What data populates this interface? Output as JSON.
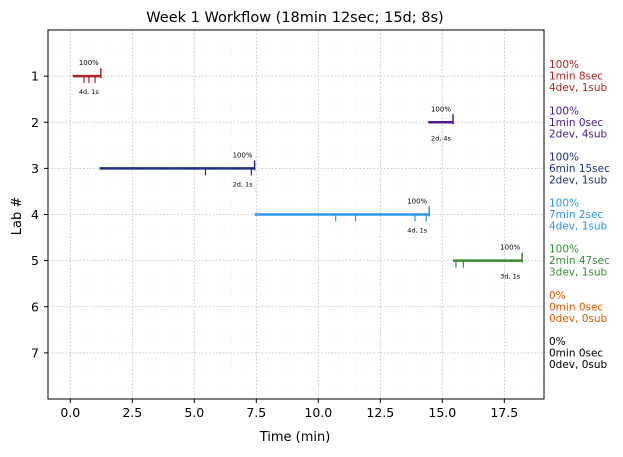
{
  "chart_data": {
    "type": "gantt",
    "title": "Week 1 Workflow (18min 12sec; 15d; 8s)",
    "xlabel": "Time (min)",
    "ylabel": "Lab #",
    "xlim": [
      -0.9,
      19.1
    ],
    "ylim": [
      8,
      0
    ],
    "xticks": [
      0.0,
      2.5,
      5.0,
      7.5,
      10.0,
      12.5,
      15.0,
      17.5
    ],
    "xtick_labels": [
      "0.0",
      "2.5",
      "5.0",
      "7.5",
      "10.0",
      "12.5",
      "15.0",
      "17.5"
    ],
    "yticks": [
      1,
      2,
      3,
      4,
      5,
      6,
      7
    ],
    "ytick_labels": [
      "1",
      "2",
      "3",
      "4",
      "5",
      "6",
      "7"
    ],
    "grid": true,
    "labs": [
      {
        "lab": 1,
        "color": "#b22222",
        "start": 0.1,
        "end": 1.23,
        "ticks": [
          0.55,
          0.75,
          1.0
        ],
        "pct": "100%",
        "counts": "4d, 1s",
        "summary": [
          "100%",
          "1min 8sec",
          "4dev, 1sub"
        ]
      },
      {
        "lab": 2,
        "color": "#4b1d8f",
        "start": 14.43,
        "end": 15.43,
        "ticks": [],
        "pct": "100%",
        "counts": "2d, 4s",
        "summary": [
          "100%",
          "1min 0sec",
          "2dev, 4sub"
        ]
      },
      {
        "lab": 3,
        "color": "#1f2e7a",
        "start": 1.18,
        "end": 7.43,
        "ticks": [
          5.45,
          7.3
        ],
        "pct": "100%",
        "counts": "2d, 1s",
        "summary": [
          "100%",
          "6min 15sec",
          "2dev, 1sub"
        ]
      },
      {
        "lab": 4,
        "color": "#2f95e8",
        "start": 7.43,
        "end": 14.47,
        "ticks": [
          10.7,
          11.5,
          13.9,
          14.35
        ],
        "pct": "100%",
        "counts": "4d, 1s",
        "summary": [
          "100%",
          "7min 2sec",
          "4dev, 1sub"
        ]
      },
      {
        "lab": 5,
        "color": "#3a8c3a",
        "start": 15.43,
        "end": 18.22,
        "ticks": [
          15.55,
          15.85
        ],
        "pct": "100%",
        "counts": "3d, 1s",
        "summary": [
          "100%",
          "2min 47sec",
          "3dev, 1sub"
        ]
      },
      {
        "lab": 6,
        "color": "#e05a00",
        "start": null,
        "end": null,
        "ticks": [],
        "pct": "",
        "counts": "",
        "summary": [
          "0%",
          "0min 0sec",
          "0dev, 0sub"
        ]
      },
      {
        "lab": 7,
        "color": "#000000",
        "start": null,
        "end": null,
        "ticks": [],
        "pct": "",
        "counts": "",
        "summary": [
          "0%",
          "0min 0sec",
          "0dev, 0sub"
        ]
      }
    ]
  }
}
